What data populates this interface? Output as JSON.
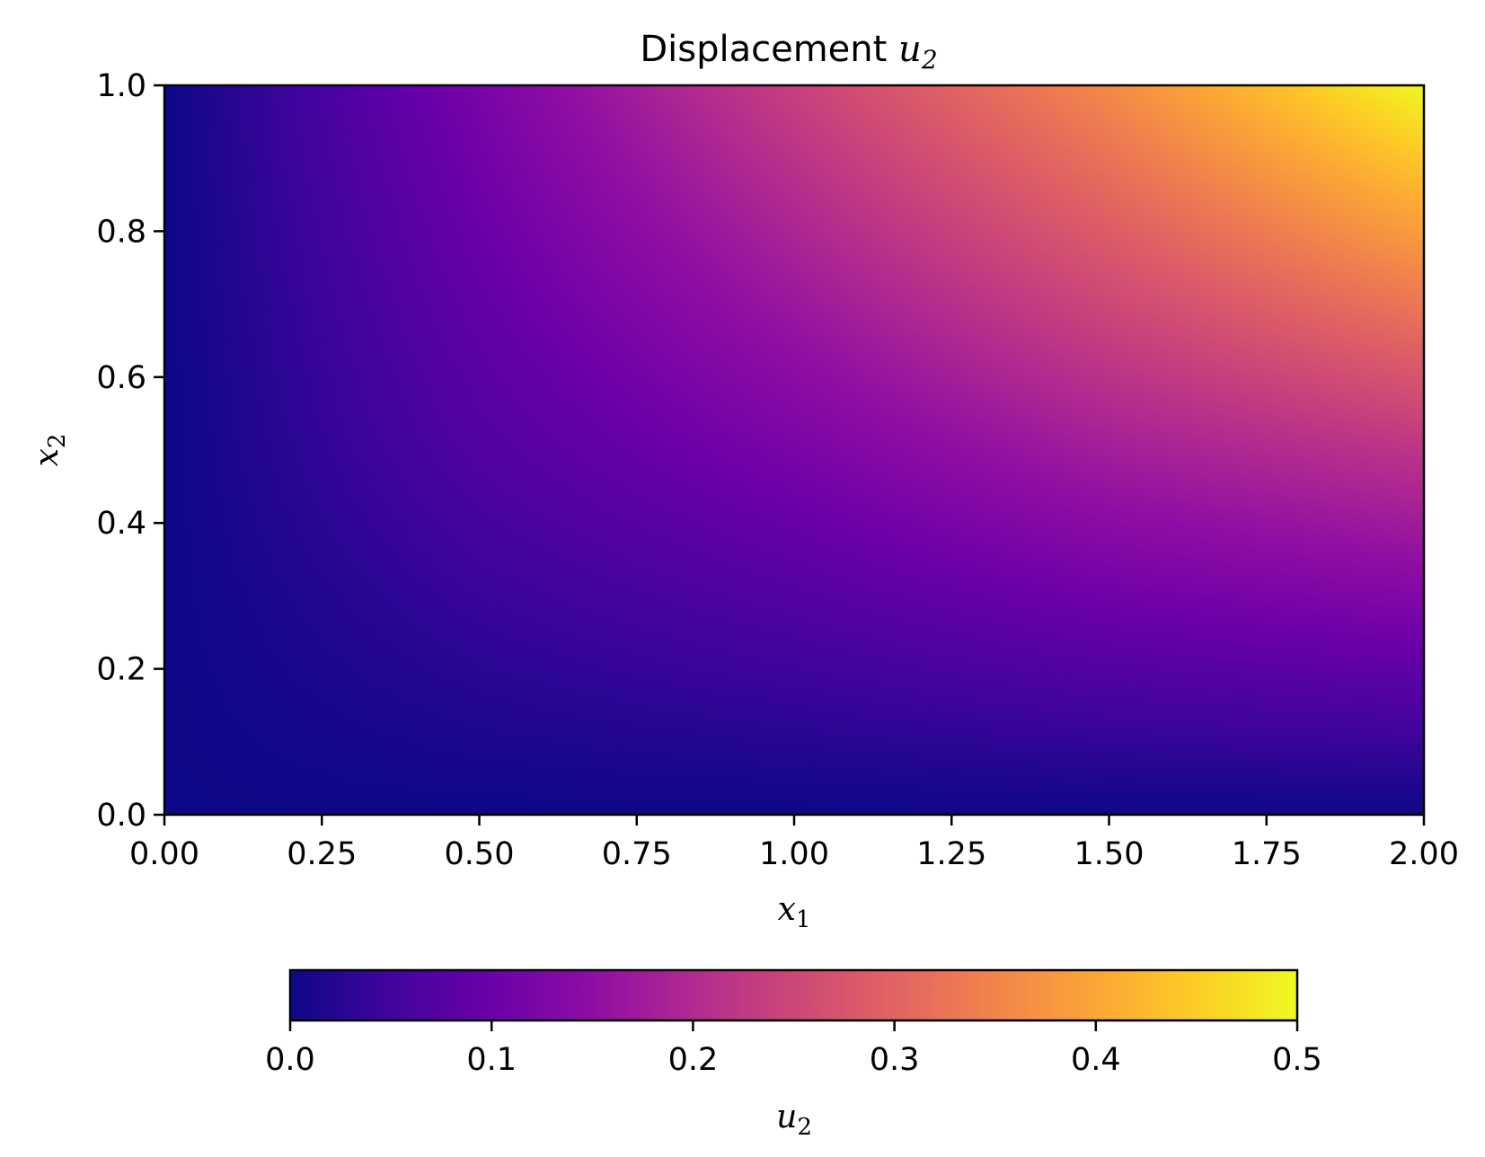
{
  "chart_data": {
    "type": "heatmap",
    "title": "Displacement u₂",
    "title_text": "Displacement",
    "title_math": {
      "base": "u",
      "sub": "2"
    },
    "xlabel": {
      "base": "x",
      "sub": "1"
    },
    "ylabel": {
      "base": "x",
      "sub": "2"
    },
    "xlim": [
      0.0,
      2.0
    ],
    "ylim": [
      0.0,
      1.0
    ],
    "xticks": [
      0.0,
      0.25,
      0.5,
      0.75,
      1.0,
      1.25,
      1.5,
      1.75,
      2.0
    ],
    "xtick_labels": [
      "0.00",
      "0.25",
      "0.50",
      "0.75",
      "1.00",
      "1.25",
      "1.50",
      "1.75",
      "2.00"
    ],
    "yticks": [
      0.0,
      0.2,
      0.4,
      0.6,
      0.8,
      1.0
    ],
    "ytick_labels": [
      "0.0",
      "0.2",
      "0.4",
      "0.6",
      "0.8",
      "1.0"
    ],
    "grid": false,
    "colormap": "plasma",
    "colorbar": {
      "orientation": "horizontal",
      "placement": "bottom",
      "label": {
        "base": "u",
        "sub": "2"
      },
      "range": [
        0.0,
        0.5
      ],
      "ticks": [
        0.0,
        0.1,
        0.2,
        0.3,
        0.4,
        0.5
      ],
      "tick_labels": [
        "0.0",
        "0.1",
        "0.2",
        "0.3",
        "0.4",
        "0.5"
      ]
    },
    "field_samples": {
      "x": [
        0.0,
        0.5,
        1.0,
        1.5,
        2.0
      ],
      "y": [
        0.0,
        0.5,
        1.0
      ],
      "values": [
        [
          0.0,
          0.0,
          0.0,
          0.0,
          0.0
        ],
        [
          0.0,
          0.07,
          0.12,
          0.18,
          0.22
        ],
        [
          0.0,
          0.12,
          0.24,
          0.36,
          0.5
        ]
      ]
    }
  }
}
